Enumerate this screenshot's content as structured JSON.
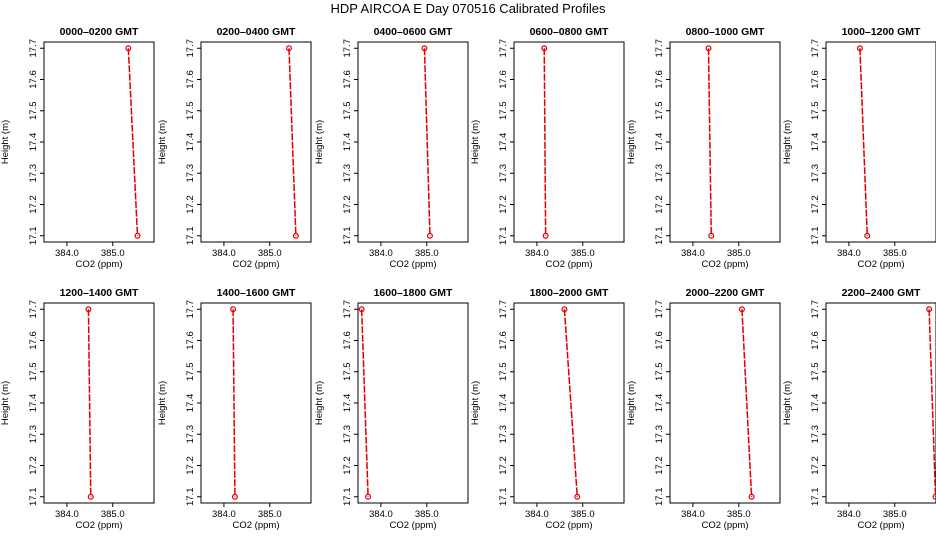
{
  "title": "HDP AIRCOA E  Day 070516  Calibrated Profiles",
  "colors": {
    "series": "#e00000",
    "axes": "#000000",
    "background": "#ffffff"
  },
  "chart_data": [
    {
      "type": "line",
      "title": "0000–0200 GMT",
      "xlabel": "CO2 (ppm)",
      "ylabel": "Height (m)",
      "xlim": [
        383.5,
        385.9
      ],
      "ylim": [
        17.08,
        17.72
      ],
      "xticks": [
        384.0,
        385.0
      ],
      "xtick_labels": [
        "384.0",
        "385.0"
      ],
      "yticks": [
        17.1,
        17.2,
        17.3,
        17.4,
        17.5,
        17.6,
        17.7
      ],
      "points": [
        {
          "x": 385.34,
          "y": 17.7
        },
        {
          "x": 385.54,
          "y": 17.1
        }
      ]
    },
    {
      "type": "line",
      "title": "0200–0400 GMT",
      "xlabel": "CO2 (ppm)",
      "ylabel": "Height (m)",
      "xlim": [
        383.5,
        385.9
      ],
      "ylim": [
        17.08,
        17.72
      ],
      "xticks": [
        384.0,
        385.0
      ],
      "xtick_labels": [
        "384.0",
        "385.0"
      ],
      "yticks": [
        17.1,
        17.2,
        17.3,
        17.4,
        17.5,
        17.6,
        17.7
      ],
      "points": [
        {
          "x": 385.42,
          "y": 17.7
        },
        {
          "x": 385.57,
          "y": 17.1
        }
      ]
    },
    {
      "type": "line",
      "title": "0400–0600 GMT",
      "xlabel": "CO2 (ppm)",
      "ylabel": "Height (m)",
      "xlim": [
        383.5,
        385.9
      ],
      "ylim": [
        17.08,
        17.72
      ],
      "xticks": [
        384.0,
        385.0
      ],
      "xtick_labels": [
        "384.0",
        "385.0"
      ],
      "yticks": [
        17.1,
        17.2,
        17.3,
        17.4,
        17.5,
        17.6,
        17.7
      ],
      "points": [
        {
          "x": 384.95,
          "y": 17.7
        },
        {
          "x": 385.07,
          "y": 17.1
        }
      ]
    },
    {
      "type": "line",
      "title": "0600–0800 GMT",
      "xlabel": "CO2 (ppm)",
      "ylabel": "Height (m)",
      "xlim": [
        383.5,
        385.9
      ],
      "ylim": [
        17.08,
        17.72
      ],
      "xticks": [
        384.0,
        385.0
      ],
      "xtick_labels": [
        "384.0",
        "385.0"
      ],
      "yticks": [
        17.1,
        17.2,
        17.3,
        17.4,
        17.5,
        17.6,
        17.7
      ],
      "points": [
        {
          "x": 384.16,
          "y": 17.7
        },
        {
          "x": 384.19,
          "y": 17.1
        }
      ]
    },
    {
      "type": "line",
      "title": "0800–1000 GMT",
      "xlabel": "CO2 (ppm)",
      "ylabel": "Height (m)",
      "xlim": [
        383.5,
        385.9
      ],
      "ylim": [
        17.08,
        17.72
      ],
      "xticks": [
        384.0,
        385.0
      ],
      "xtick_labels": [
        "384.0",
        "385.0"
      ],
      "yticks": [
        17.1,
        17.2,
        17.3,
        17.4,
        17.5,
        17.6,
        17.7
      ],
      "points": [
        {
          "x": 384.34,
          "y": 17.7
        },
        {
          "x": 384.4,
          "y": 17.1
        }
      ]
    },
    {
      "type": "line",
      "title": "1000–1200 GMT",
      "xlabel": "CO2 (ppm)",
      "ylabel": "Height (m)",
      "xlim": [
        383.5,
        385.9
      ],
      "ylim": [
        17.08,
        17.72
      ],
      "xticks": [
        384.0,
        385.0
      ],
      "xtick_labels": [
        "384.0",
        "385.0"
      ],
      "yticks": [
        17.1,
        17.2,
        17.3,
        17.4,
        17.5,
        17.6,
        17.7
      ],
      "points": [
        {
          "x": 384.24,
          "y": 17.7
        },
        {
          "x": 384.4,
          "y": 17.1
        }
      ]
    },
    {
      "type": "line",
      "title": "1200–1400 GMT",
      "xlabel": "CO2 (ppm)",
      "ylabel": "Height (m)",
      "xlim": [
        383.5,
        385.9
      ],
      "ylim": [
        17.08,
        17.72
      ],
      "xticks": [
        384.0,
        385.0
      ],
      "xtick_labels": [
        "384.0",
        "385.0"
      ],
      "yticks": [
        17.1,
        17.2,
        17.3,
        17.4,
        17.5,
        17.6,
        17.7
      ],
      "points": [
        {
          "x": 384.47,
          "y": 17.7
        },
        {
          "x": 384.52,
          "y": 17.1
        }
      ]
    },
    {
      "type": "line",
      "title": "1400–1600 GMT",
      "xlabel": "CO2 (ppm)",
      "ylabel": "Height (m)",
      "xlim": [
        383.5,
        385.9
      ],
      "ylim": [
        17.08,
        17.72
      ],
      "xticks": [
        384.0,
        385.0
      ],
      "xtick_labels": [
        "384.0",
        "385.0"
      ],
      "yticks": [
        17.1,
        17.2,
        17.3,
        17.4,
        17.5,
        17.6,
        17.7
      ],
      "points": [
        {
          "x": 384.2,
          "y": 17.7
        },
        {
          "x": 384.24,
          "y": 17.1
        }
      ]
    },
    {
      "type": "line",
      "title": "1600–1800 GMT",
      "xlabel": "CO2 (ppm)",
      "ylabel": "Height (m)",
      "xlim": [
        383.5,
        385.9
      ],
      "ylim": [
        17.08,
        17.72
      ],
      "xticks": [
        384.0,
        385.0
      ],
      "xtick_labels": [
        "384.0",
        "385.0"
      ],
      "yticks": [
        17.1,
        17.2,
        17.3,
        17.4,
        17.5,
        17.6,
        17.7
      ],
      "points": [
        {
          "x": 383.58,
          "y": 17.7
        },
        {
          "x": 383.72,
          "y": 17.1
        }
      ]
    },
    {
      "type": "line",
      "title": "1800–2000 GMT",
      "xlabel": "CO2 (ppm)",
      "ylabel": "Height (m)",
      "xlim": [
        383.5,
        385.9
      ],
      "ylim": [
        17.08,
        17.72
      ],
      "xticks": [
        384.0,
        385.0
      ],
      "xtick_labels": [
        "384.0",
        "385.0"
      ],
      "yticks": [
        17.1,
        17.2,
        17.3,
        17.4,
        17.5,
        17.6,
        17.7
      ],
      "points": [
        {
          "x": 384.6,
          "y": 17.7
        },
        {
          "x": 384.88,
          "y": 17.1
        }
      ]
    },
    {
      "type": "line",
      "title": "2000–2200 GMT",
      "xlabel": "CO2 (ppm)",
      "ylabel": "Height (m)",
      "xlim": [
        383.5,
        385.9
      ],
      "ylim": [
        17.08,
        17.72
      ],
      "xticks": [
        384.0,
        385.0
      ],
      "xtick_labels": [
        "384.0",
        "385.0"
      ],
      "yticks": [
        17.1,
        17.2,
        17.3,
        17.4,
        17.5,
        17.6,
        17.7
      ],
      "points": [
        {
          "x": 385.07,
          "y": 17.7
        },
        {
          "x": 385.28,
          "y": 17.1
        }
      ]
    },
    {
      "type": "line",
      "title": "2200–2400 GMT",
      "xlabel": "CO2 (ppm)",
      "ylabel": "Height (m)",
      "xlim": [
        383.5,
        385.9
      ],
      "ylim": [
        17.08,
        17.72
      ],
      "xticks": [
        384.0,
        385.0
      ],
      "xtick_labels": [
        "384.0",
        "385.0"
      ],
      "yticks": [
        17.1,
        17.2,
        17.3,
        17.4,
        17.5,
        17.6,
        17.7
      ],
      "points": [
        {
          "x": 385.75,
          "y": 17.7
        },
        {
          "x": 385.89,
          "y": 17.1
        }
      ]
    }
  ]
}
